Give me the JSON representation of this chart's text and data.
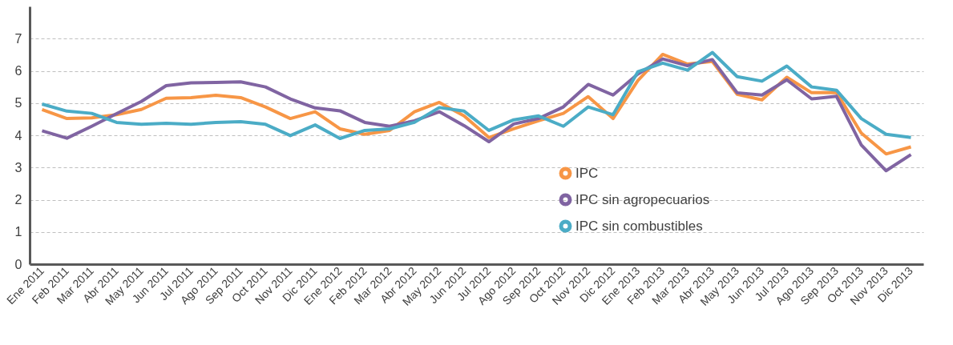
{
  "chart_data": {
    "type": "line",
    "categories": [
      "Ene 2011",
      "Feb 2011",
      "Mar 2011",
      "Abr 2011",
      "May 2011",
      "Jun 2011",
      "Jul 2011",
      "Ago 2011",
      "Sep 2011",
      "Oct 2011",
      "Nov 2011",
      "Dic 2011",
      "Ene 2012",
      "Feb 2012",
      "Mar 2012",
      "Abr 2012",
      "May 2012",
      "Jun 2012",
      "Jul 2012",
      "Ago 2012",
      "Sep 2012",
      "Oct 2012",
      "Nov 2012",
      "Dic 2012",
      "Ene 2013",
      "Feb 2013",
      "Mar 2013",
      "Abr 2013",
      "May 2013",
      "Jun 2013",
      "Jul 2013",
      "Ago 2013",
      "Sep 2013",
      "Oct 2013",
      "Nov 2013",
      "Dic 2013"
    ],
    "series": [
      {
        "name": "IPC",
        "color": "#f79646",
        "values": [
          4.8,
          4.52,
          4.54,
          4.64,
          4.8,
          5.15,
          5.17,
          5.24,
          5.17,
          4.88,
          4.52,
          4.73,
          4.2,
          4.03,
          4.15,
          4.73,
          5.02,
          4.6,
          3.93,
          4.2,
          4.45,
          4.68,
          5.2,
          4.52,
          5.7,
          6.51,
          6.21,
          6.29,
          5.27,
          5.1,
          5.8,
          5.32,
          5.33,
          4.07,
          3.42,
          3.64
        ]
      },
      {
        "name": "IPC sin agropecuarios",
        "color": "#8064a2",
        "values": [
          4.14,
          3.91,
          4.28,
          4.67,
          5.05,
          5.54,
          5.63,
          5.64,
          5.66,
          5.5,
          5.13,
          4.85,
          4.76,
          4.4,
          4.28,
          4.45,
          4.73,
          4.3,
          3.8,
          4.35,
          4.52,
          4.88,
          5.58,
          5.25,
          5.9,
          6.37,
          6.16,
          6.35,
          5.32,
          5.25,
          5.72,
          5.13,
          5.21,
          3.7,
          2.9,
          3.4
        ]
      },
      {
        "name": "IPC sin combustibles",
        "color": "#4bacc6",
        "values": [
          4.97,
          4.75,
          4.68,
          4.4,
          4.34,
          4.37,
          4.34,
          4.4,
          4.42,
          4.34,
          3.99,
          4.32,
          3.9,
          4.15,
          4.2,
          4.4,
          4.86,
          4.75,
          4.15,
          4.48,
          4.6,
          4.28,
          4.88,
          4.64,
          5.97,
          6.24,
          6.02,
          6.57,
          5.82,
          5.68,
          6.15,
          5.5,
          5.4,
          4.52,
          4.03,
          3.93
        ]
      }
    ],
    "ylim": [
      0,
      8
    ],
    "yticks": [
      0,
      1,
      2,
      3,
      4,
      5,
      6,
      7
    ],
    "grid": "y",
    "legend": "right",
    "line_style": "solid"
  }
}
